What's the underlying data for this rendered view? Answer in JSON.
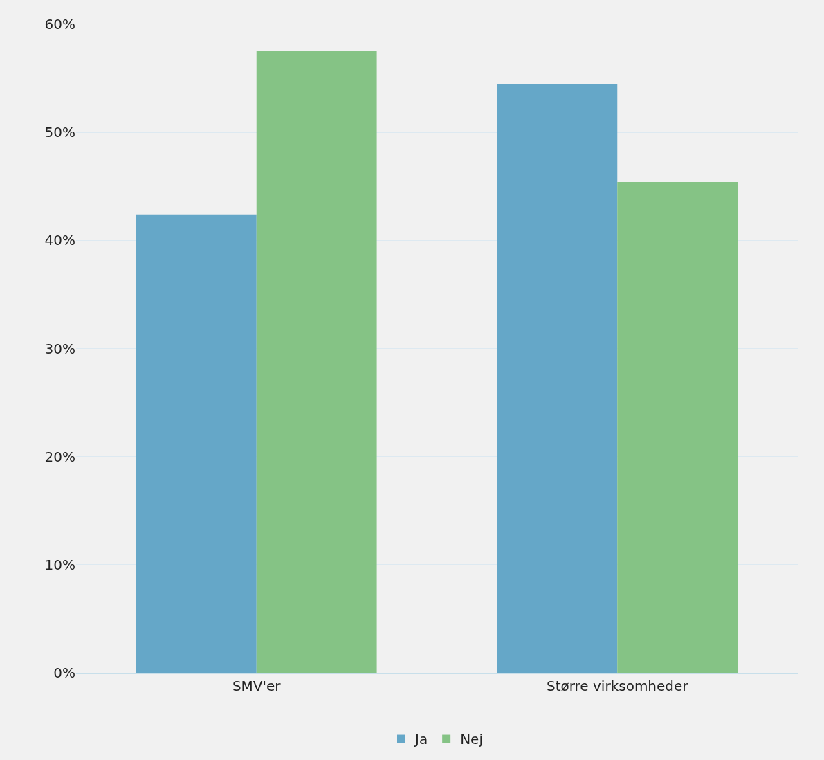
{
  "chart_data": {
    "type": "bar",
    "categories": [
      "SMV'er",
      "Større virksomheder"
    ],
    "series": [
      {
        "name": "Ja",
        "color": "#65a7c8",
        "values": [
          42.4,
          54.5
        ]
      },
      {
        "name": "Nej",
        "color": "#85c385",
        "values": [
          57.5,
          45.4
        ]
      }
    ],
    "ylim": [
      0,
      60
    ],
    "yticks": [
      {
        "value": 0,
        "label": "0%"
      },
      {
        "value": 10,
        "label": "10%"
      },
      {
        "value": 20,
        "label": "20%"
      },
      {
        "value": 30,
        "label": "30%"
      },
      {
        "value": 40,
        "label": "40%"
      },
      {
        "value": 50,
        "label": "50%"
      },
      {
        "value": 60,
        "label": "60%"
      }
    ],
    "grid": "y",
    "legend": "bottom"
  }
}
